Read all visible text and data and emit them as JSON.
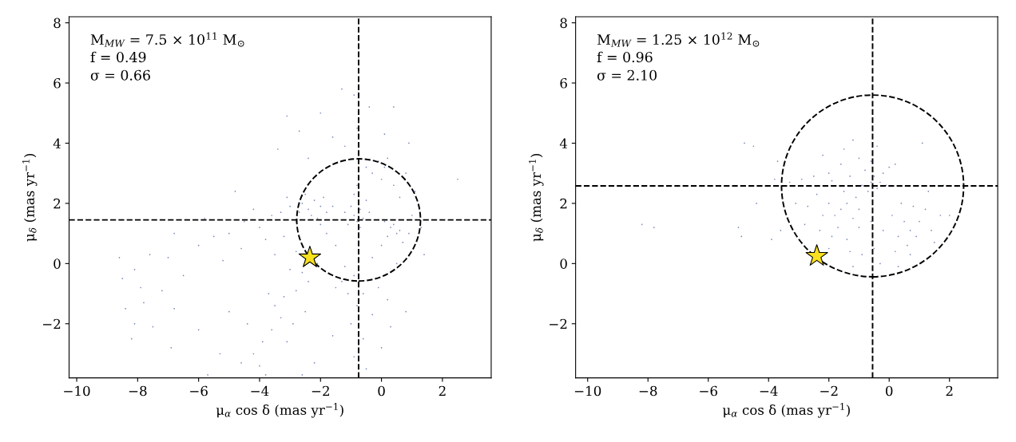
{
  "chart_data": [
    {
      "type": "scatter",
      "xlabel": "μ$_{α}$ cos δ (mas yr$^{−1}$)",
      "ylabel": "μ$_{δ}$ (mas yr$^{−1}$)",
      "annotations": [
        "M$_{MW}$ = 7.5 × 10$^{11}$ M$_{⊙}$",
        "f = 0.49",
        "σ = 0.66"
      ],
      "xlim": [
        -10.25,
        3.6
      ],
      "ylim": [
        -3.8,
        8.2
      ],
      "xticks": [
        {
          "value": -10,
          "label": "−10"
        },
        {
          "value": -8,
          "label": "−8"
        },
        {
          "value": -6,
          "label": "−6"
        },
        {
          "value": -4,
          "label": "−4"
        },
        {
          "value": -2,
          "label": "−2"
        },
        0,
        2
      ],
      "yticks": [
        {
          "value": -2,
          "label": "−2"
        },
        0,
        2,
        4,
        6,
        8
      ],
      "grid": false,
      "ref_lines": [
        {
          "axis": "x",
          "value": -0.75,
          "color": "#000000",
          "line_style": "dashed"
        },
        {
          "axis": "y",
          "value": 1.45,
          "color": "#000000",
          "line_style": "dashed"
        }
      ],
      "series": [
        {
          "color": "#5b6fa8",
          "marker": "circle",
          "x": [
            -2.6,
            -2.4,
            -2.2,
            -2.0,
            -2.3,
            -1.9,
            -2.7,
            -2.1,
            -1.8,
            -2.5,
            -3.0,
            -3.3,
            -3.6,
            -3.1,
            -1.6,
            -2.0,
            -2.8,
            -0.9,
            -0.7,
            -0.8,
            -0.6,
            -1.0,
            -0.5,
            -0.9,
            -0.7,
            -1.2,
            -0.4,
            -0.8,
            -1.1,
            0.3,
            0.5,
            0.4,
            0.2,
            0.6,
            0.1,
            0.7,
            0.9,
            0.0,
            1.0,
            1.3,
            -0.1,
            0.1,
            -0.3,
            0.2,
            0.0,
            -0.5,
            0.4,
            0.6,
            0.8,
            1.1,
            2.5,
            -0.8,
            -0.9,
            -1.3,
            -0.4,
            -2.0,
            -3.1,
            -1.6,
            -2.7,
            0.4,
            0.9,
            -3.4,
            -1.2,
            -2.4,
            0.1,
            -4.2,
            -4.5,
            -5.0,
            -4.0,
            -3.8,
            -5.5,
            -6.0,
            -4.6,
            -6.8,
            -5.8,
            -7.0,
            -7.6,
            -5.2,
            -3.5,
            -4.8,
            -8.6,
            -8.5,
            -8.1,
            -7.8,
            -8.4,
            -8.1,
            -7.2,
            -7.5,
            -6.8,
            -6.5,
            -7.9,
            -6.0,
            -6.9,
            -8.2,
            -2.8,
            -2.1,
            -1.5,
            -1.2,
            -0.3,
            -1.8,
            -2.6,
            -0.1,
            0.5,
            1.4,
            -3.2,
            -3.0,
            -1.3,
            -1.5,
            -1.1,
            -0.9,
            -0.8,
            -1.0,
            -0.6,
            -0.9,
            -0.5,
            0.2,
            0.3,
            0.0,
            -0.3,
            -1.6,
            0.8,
            -0.6,
            -2.4,
            -2.8,
            -3.2,
            -3.5,
            -3.7,
            -3.3,
            -3.6,
            -3.9,
            -4.2,
            -4.0,
            -3.8,
            -4.6,
            -3.1,
            -2.9,
            -2.5,
            -4.4,
            -5.3,
            -5.7,
            -5.0,
            -2.2,
            -2.6
          ],
          "values": [
            2.0,
            1.8,
            2.1,
            1.9,
            1.6,
            2.2,
            1.7,
            1.5,
            1.7,
            2.3,
            1.9,
            1.7,
            1.6,
            2.2,
            1.9,
            1.3,
            1.4,
            1.6,
            1.8,
            1.4,
            1.5,
            1.9,
            2.1,
            2.3,
            1.2,
            1.7,
            1.7,
            2.6,
            1.3,
            1.2,
            1.0,
            1.3,
            0.9,
            1.1,
            1.4,
            0.7,
            1.0,
            0.6,
            1.6,
            1.2,
            3.4,
            3.2,
            3.0,
            3.5,
            2.8,
            3.2,
            2.6,
            2.2,
            3.0,
            2.4,
            2.8,
            4.5,
            5.6,
            5.8,
            5.2,
            5.0,
            4.9,
            4.2,
            4.4,
            5.2,
            4.0,
            3.8,
            3.9,
            3.5,
            4.3,
            1.8,
            1.4,
            1.0,
            1.2,
            0.8,
            0.9,
            0.6,
            0.5,
            1.0,
            1.5,
            0.2,
            0.3,
            0.1,
            0.3,
            2.4,
            0.2,
            -0.5,
            -0.2,
            -1.3,
            -1.5,
            -2.0,
            -0.9,
            -2.1,
            -1.5,
            -0.4,
            -0.8,
            -2.2,
            -2.8,
            -2.5,
            0.4,
            0.0,
            0.6,
            -0.1,
            0.2,
            1.0,
            -0.3,
            -0.8,
            0.0,
            0.3,
            0.9,
            -0.2,
            -0.6,
            -0.8,
            -1.0,
            -0.4,
            -1.4,
            -2.0,
            -2.5,
            -3.1,
            -3.5,
            -1.2,
            -2.1,
            -2.8,
            -1.7,
            -2.4,
            -1.6,
            -1.0,
            -0.6,
            -0.9,
            -1.1,
            -1.4,
            -1.0,
            -1.8,
            -2.2,
            -2.6,
            -3.0,
            -3.4,
            -3.7,
            -3.3,
            -2.6,
            -2.0,
            -1.6,
            -2.0,
            -3.0,
            -3.7,
            -1.6,
            -3.3,
            -3.7
          ]
        },
        {
          "type": "scatter",
          "color": "#f8e11d",
          "marker": "star",
          "x": [
            -2.35
          ],
          "values": [
            0.2
          ]
        }
      ]
    },
    {
      "type": "scatter",
      "xlabel": "μ$_{α}$ cos δ (mas yr$^{−1}$)",
      "ylabel": "μ$_{δ}$ (mas yr$^{−1}$)",
      "annotations": [
        "M$_{MW}$ = 1.25 × 10$^{12}$ M$_{⊙}$",
        "f = 0.96",
        "σ = 2.10"
      ],
      "xlim": [
        -10.4,
        3.6
      ],
      "ylim": [
        -3.8,
        8.2
      ],
      "xticks": [
        {
          "value": -10,
          "label": "−10"
        },
        {
          "value": -8,
          "label": "−8"
        },
        {
          "value": -6,
          "label": "−6"
        },
        {
          "value": -4,
          "label": "−4"
        },
        {
          "value": -2,
          "label": "−2"
        },
        0,
        2
      ],
      "yticks": [
        {
          "value": -2,
          "label": "−2"
        },
        0,
        2,
        4,
        6,
        8
      ],
      "grid": false,
      "ref_lines": [
        {
          "axis": "x",
          "value": -0.55,
          "color": "#000000",
          "line_style": "dashed"
        },
        {
          "axis": "y",
          "value": 2.58,
          "color": "#000000",
          "line_style": "dashed"
        }
      ],
      "series": [
        {
          "color": "#5b6fa8",
          "marker": "circle",
          "x": [
            -0.6,
            -0.4,
            -0.5,
            -0.3,
            -0.7,
            -0.2,
            0.0,
            -0.1,
            -0.8,
            -0.6,
            0.2,
            -0.9,
            -1.6,
            -1.4,
            -1.8,
            -1.2,
            -2.0,
            -1.5,
            -1.0,
            -1.7,
            -2.2,
            -1.9,
            -1.1,
            -2.4,
            -2.7,
            -2.9,
            -2.5,
            -2.0,
            -1.3,
            -1.6,
            -2.3,
            -1.9,
            -1.4,
            -1.0,
            -2.8,
            -3.1,
            -3.3,
            -2.2,
            -1.5,
            -1.0,
            -0.4,
            0.5,
            0.7,
            0.9,
            0.6,
            1.0,
            0.3,
            1.2,
            0.8,
            0.4,
            1.4,
            1.5,
            0.2,
            0.7,
            1.7,
            1.3,
            0.1,
            -0.5,
            -0.9,
            -1.3,
            -0.2,
            -0.6,
            -2.0,
            -0.3,
            0.3,
            -1.2,
            -3.7,
            -3.8,
            -4.8,
            -4.5,
            -5.0,
            -4.9,
            -8.2,
            -7.8,
            -4.4,
            -3.6,
            -3.9,
            1.8,
            2.0,
            -1.2,
            1.1
          ],
          "values": [
            2.7,
            2.5,
            2.9,
            2.7,
            2.4,
            3.0,
            3.2,
            2.6,
            3.1,
            3.4,
            3.3,
            2.6,
            1.8,
            2.0,
            1.6,
            1.5,
            2.0,
            2.4,
            1.8,
            1.2,
            1.6,
            2.75,
            2.2,
            2.3,
            1.9,
            2.8,
            2.9,
            3.0,
            2.9,
            3.3,
            1.1,
            0.9,
            0.8,
            1.2,
            1.3,
            2.0,
            2.7,
            3.6,
            3.8,
            3.5,
            3.9,
            1.4,
            1.1,
            0.9,
            0.6,
            1.4,
            0.9,
            1.8,
            1.9,
            2.0,
            1.1,
            0.7,
            0.4,
            0.3,
            1.6,
            2.4,
            1.6,
            0.5,
            0.3,
            0.4,
            1.1,
            1.4,
            0.5,
            0.0,
            -0.1,
            -0.1,
            3.4,
            2.8,
            4.0,
            3.9,
            1.2,
            0.9,
            1.3,
            1.2,
            2.0,
            1.1,
            0.8,
            2.6,
            1.6,
            4.1,
            4.0
          ]
        },
        {
          "type": "scatter",
          "color": "#f8e11d",
          "marker": "star",
          "x": [
            -2.4
          ],
          "values": [
            0.25
          ]
        }
      ]
    }
  ]
}
